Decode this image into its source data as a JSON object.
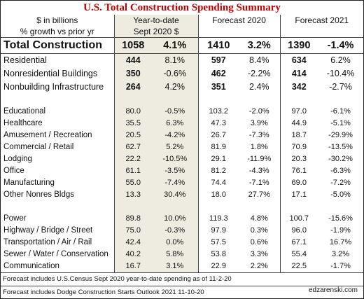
{
  "title": "U.S. Total Construction Spending Summary",
  "header": {
    "row1": [
      "$ in billions",
      "Year-to-date",
      "Forecast 2020",
      "Forecast 2021"
    ],
    "row2": [
      "% growth vs prior yr",
      "Sept 2020 $"
    ]
  },
  "total": {
    "name": "Total Construction",
    "values": [
      "1058",
      "4.1%",
      "1410",
      "3.2%",
      "1390",
      "-1.4%"
    ]
  },
  "major": [
    {
      "name": "Residential",
      "values": [
        "444",
        "8.1%",
        "597",
        "8.4%",
        "634",
        "6.2%"
      ]
    },
    {
      "name": "Nonresidential Buildings",
      "values": [
        "350",
        "-0.6%",
        "462",
        "-2.2%",
        "414",
        "-10.4%"
      ]
    },
    {
      "name": "Nonbuilding Infrastructure",
      "values": [
        "264",
        "4.2%",
        "351",
        "2.4%",
        "342",
        "-2.7%"
      ]
    }
  ],
  "nonres": [
    {
      "name": "Educational",
      "values": [
        "80.0",
        "-0.5%",
        "103.2",
        "-2.0%",
        "97.0",
        "-6.1%"
      ]
    },
    {
      "name": "Healthcare",
      "values": [
        "35.5",
        "6.3%",
        "47.3",
        "3.9%",
        "44.9",
        "-5.1%"
      ]
    },
    {
      "name": "Amusement / Recreation",
      "values": [
        "20.5",
        "-4.2%",
        "26.7",
        "-7.3%",
        "18.7",
        "-29.9%"
      ]
    },
    {
      "name": "Commercial / Retail",
      "values": [
        "62.7",
        "5.2%",
        "81.9",
        "1.8%",
        "70.9",
        "-13.5%"
      ]
    },
    {
      "name": "Lodging",
      "values": [
        "22.2",
        "-10.5%",
        "29.1",
        "-11.9%",
        "20.3",
        "-30.2%"
      ]
    },
    {
      "name": "Office",
      "values": [
        "61.1",
        "-3.5%",
        "81.2",
        "-4.3%",
        "76.1",
        "-6.3%"
      ]
    },
    {
      "name": "Manufacturing",
      "values": [
        "55.0",
        "-7.4%",
        "74.4",
        "-7.1%",
        "69.0",
        "-7.2%"
      ]
    },
    {
      "name": "Other Nonres Bldgs",
      "values": [
        "13.3",
        "30.4%",
        "18.0",
        "27.7%",
        "17.1",
        "-5.0%"
      ]
    }
  ],
  "infra": [
    {
      "name": "Power",
      "values": [
        "89.8",
        "10.0%",
        "119.3",
        "4.8%",
        "100.7",
        "-15.6%"
      ]
    },
    {
      "name": "Highway / Bridge / Street",
      "values": [
        "75.0",
        "-0.3%",
        "97.9",
        "0.3%",
        "96.0",
        "-1.9%"
      ]
    },
    {
      "name": "Transportation / Air / Rail",
      "values": [
        "42.4",
        "0.0%",
        "57.5",
        "0.6%",
        "67.1",
        "16.7%"
      ]
    },
    {
      "name": "Sewer / Water / Conservation",
      "values": [
        "40.2",
        "5.8%",
        "53.8",
        "3.3%",
        "55.4",
        "3.2%"
      ]
    },
    {
      "name": "Communication",
      "values": [
        "16.7",
        "3.1%",
        "22.9",
        "2.2%",
        "22.5",
        "-1.7%"
      ]
    }
  ],
  "notes": [
    "Forecast includes U.S.Census Sept 2020 year-to-date spending as of 11-2-20",
    "Forecast includes Dodge Construction Starts Outlook 2021 11-10-20"
  ],
  "credit": "edzarenski.com"
}
